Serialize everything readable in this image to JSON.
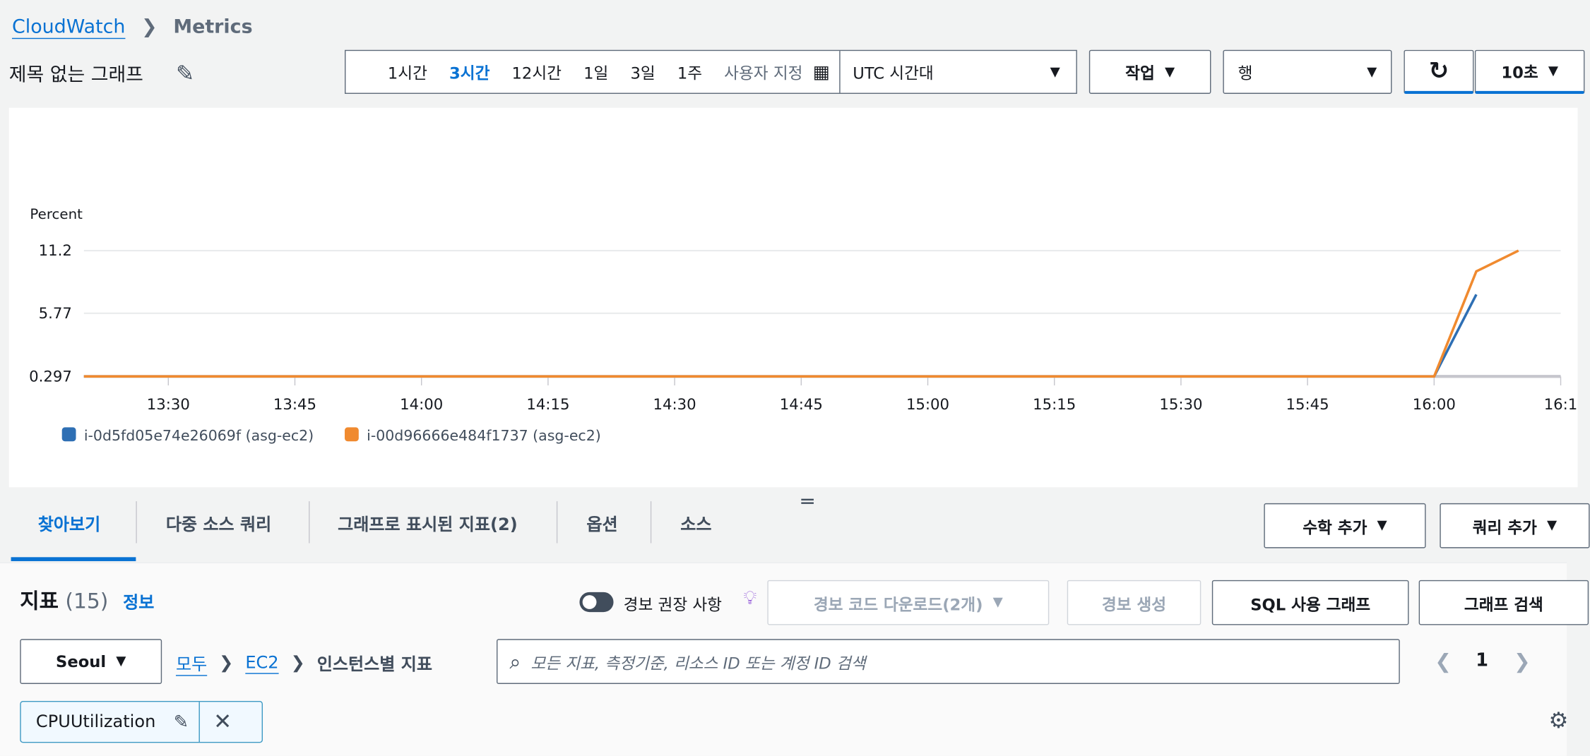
{
  "breadcrumb": {
    "root": "CloudWatch",
    "current": "Metrics"
  },
  "graph_title": "제목 없는 그래프",
  "time_ranges": [
    "1시간",
    "3시간",
    "12시간",
    "1일",
    "3일",
    "1주"
  ],
  "selected_range": "3시간",
  "custom_label": "사용자 지정",
  "timezone": "UTC 시간대",
  "actions_label": "작업",
  "view_select": "행",
  "refresh_interval": "10초",
  "chart_data": {
    "type": "line",
    "ylabel": "Percent",
    "y_ticks": [
      "11.2",
      "5.77",
      "0.297"
    ],
    "ylim": [
      0.297,
      11.2
    ],
    "x_ticks": [
      "13:30",
      "13:45",
      "14:00",
      "14:15",
      "14:30",
      "14:45",
      "15:00",
      "15:15",
      "15:30",
      "15:45",
      "16:00",
      "16:1"
    ],
    "xlim": [
      "13:20",
      "16:15"
    ],
    "grid": true,
    "legend_position": "bottom-left",
    "series": [
      {
        "name": "i-0d5fd05e74e26069f (asg-ec2)",
        "color": "#2e6fb4",
        "points": [
          [
            "13:20",
            0.297
          ],
          [
            "16:00",
            0.297
          ],
          [
            "16:05",
            7.4
          ]
        ]
      },
      {
        "name": "i-00d96666e484f1737 (asg-ec2)",
        "color": "#f08a2f",
        "points": [
          [
            "13:20",
            0.297
          ],
          [
            "16:00",
            0.297
          ],
          [
            "16:05",
            9.4
          ],
          [
            "16:10",
            11.2
          ]
        ]
      }
    ]
  },
  "tabs": [
    "찾아보기",
    "다중 소스 쿼리",
    "그래프로 표시된 지표(2)",
    "옵션",
    "소스"
  ],
  "active_tab": "찾아보기",
  "add_math": "수학 추가",
  "add_query": "쿼리 추가",
  "metrics": {
    "title": "지표",
    "count": "(15)",
    "info": "정보",
    "alarm_toggle": "경보 권장 사항",
    "download_code": "경보 코드 다운로드(2개)",
    "create_alarm": "경보 생성",
    "sql_graph": "SQL 사용 그래프",
    "graph_search": "그래프 검색"
  },
  "region": "Seoul",
  "path": {
    "all": "모두",
    "ns": "EC2",
    "dim": "인스턴스별 지표"
  },
  "search_placeholder": "모든 지표, 측정기준, 리소스 ID 또는 계정 ID 검색",
  "page": "1",
  "filter_token": "CPUUtilization",
  "colors": {
    "accent": "#0972d3",
    "blue_series": "#2e6fb4",
    "orange_series": "#f08a2f"
  }
}
